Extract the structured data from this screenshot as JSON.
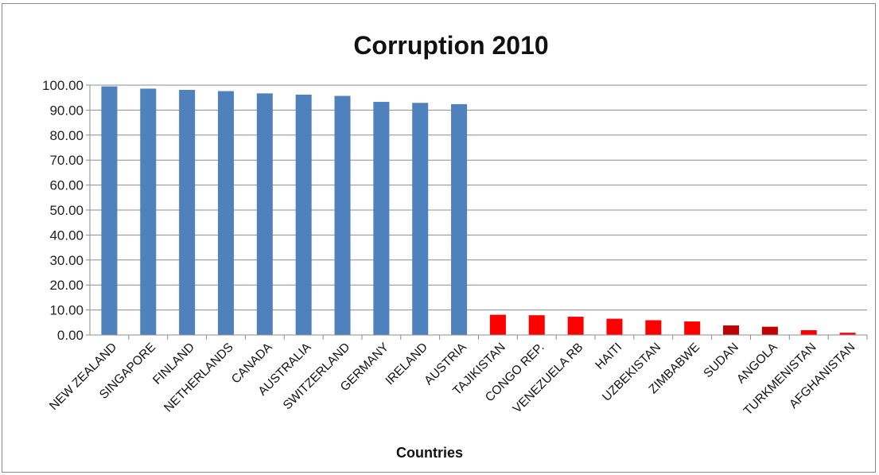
{
  "chart_data": {
    "type": "bar",
    "title": "Corruption 2010",
    "xlabel": "Countries",
    "ylabel": "",
    "ylim": [
      0,
      100
    ],
    "ytick_step": 10,
    "ytick_format_decimals": 2,
    "grid": true,
    "legend": "none",
    "categories": [
      "NEW ZEALAND",
      "SINGAPORE",
      "FINLAND",
      "NETHERLANDS",
      "CANADA",
      "AUSTRALIA",
      "SWITZERLAND",
      "GERMANY",
      "IRELAND",
      "AUSTRIA",
      "TAJIKISTAN",
      "CONGO REP.",
      "VENEZUELA RB",
      "HAITI",
      "UZBEKISTAN",
      "ZIMBABWE",
      "SUDAN",
      "ANGOLA",
      "TURKMENISTAN",
      "AFGHANISTAN"
    ],
    "values": [
      99.5,
      98.6,
      98.1,
      97.6,
      96.7,
      96.2,
      95.7,
      93.3,
      92.9,
      92.4,
      8.1,
      7.9,
      7.3,
      6.5,
      5.9,
      5.4,
      3.8,
      3.3,
      1.9,
      0.9
    ],
    "colors": [
      "#4f81bd",
      "#4f81bd",
      "#4f81bd",
      "#4f81bd",
      "#4f81bd",
      "#4f81bd",
      "#4f81bd",
      "#4f81bd",
      "#4f81bd",
      "#4f81bd",
      "#ff0000",
      "#ff0000",
      "#ff0000",
      "#ff0000",
      "#ff0000",
      "#ff0000",
      "#c00000",
      "#c00000",
      "#ff0000",
      "#ff0000"
    ]
  }
}
